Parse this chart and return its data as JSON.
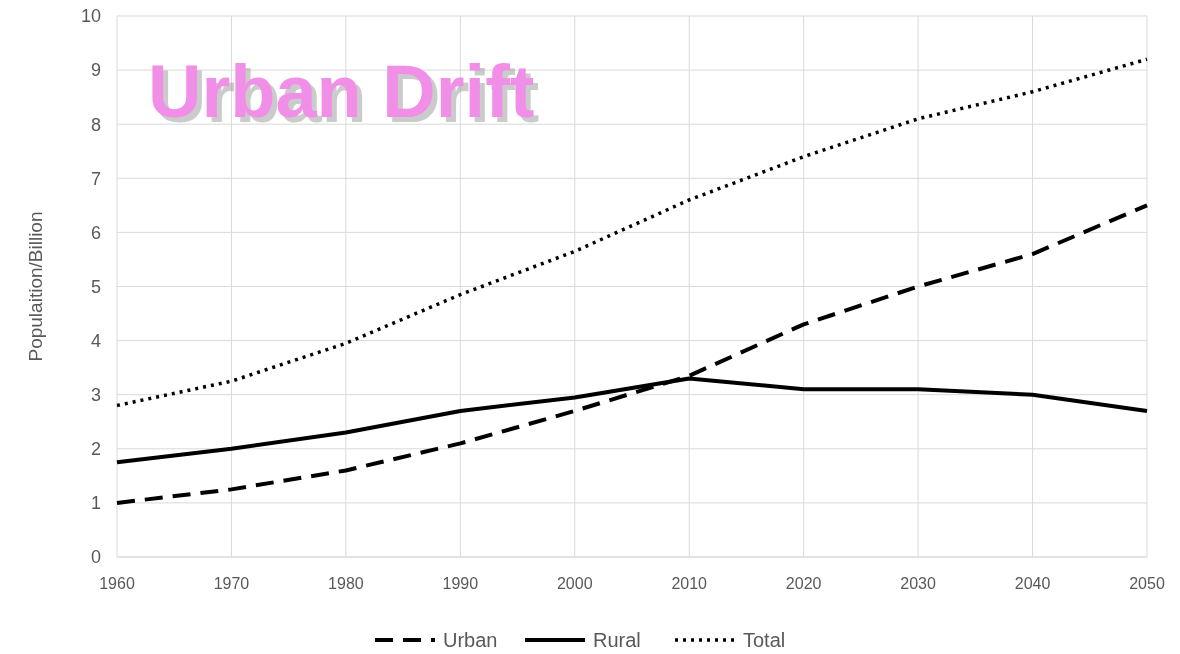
{
  "chart_data": {
    "type": "line",
    "title": "Urban Drift",
    "ylabel": "Populaition/Billion",
    "x": [
      1960,
      1970,
      1980,
      1990,
      2000,
      2010,
      2020,
      2030,
      2040,
      2050
    ],
    "xlim": [
      1960,
      2050
    ],
    "xticks": [
      1960,
      1970,
      1980,
      1990,
      2000,
      2010,
      2020,
      2030,
      2040,
      2050
    ],
    "ylim": [
      0,
      10
    ],
    "yticks": [
      0,
      1,
      2,
      3,
      4,
      5,
      6,
      7,
      8,
      9,
      10
    ],
    "grid": true,
    "legend": "bottom",
    "marker": "none",
    "series": [
      {
        "name": "Urban",
        "color": "#000000",
        "line_style": "dashed",
        "values": [
          1.0,
          1.25,
          1.6,
          2.1,
          2.7,
          3.35,
          4.3,
          5.0,
          5.6,
          6.5
        ]
      },
      {
        "name": "Rural",
        "color": "#000000",
        "line_style": "solid",
        "values": [
          1.75,
          2.0,
          2.3,
          2.7,
          2.95,
          3.3,
          3.1,
          3.1,
          3.0,
          2.7
        ]
      },
      {
        "name": "Total",
        "color": "#000000",
        "line_style": "dotted",
        "values": [
          2.8,
          3.25,
          3.95,
          4.85,
          5.65,
          6.6,
          7.4,
          8.1,
          8.6,
          9.2
        ]
      }
    ]
  }
}
